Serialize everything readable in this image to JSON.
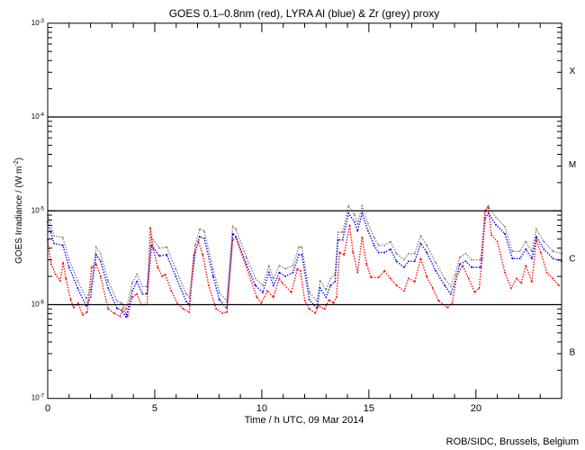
{
  "chart_data": {
    "type": "scatter",
    "title": "GOES 0.1–0.8nm (red), LYRA Al (blue) & Zr (grey) proxy",
    "xlabel": "Time / h UTC, 09 Mar 2014",
    "ylabel": "GOES Irradiance / (W m",
    "ylabel_sup": "-2",
    "ylabel_close": ")",
    "xlim": [
      0,
      24
    ],
    "ylim": [
      1e-07,
      0.001
    ],
    "yscale": "log",
    "x_ticks": [
      "0",
      "5",
      "10",
      "15",
      "20"
    ],
    "x_tick_values": [
      0,
      5,
      10,
      15,
      20
    ],
    "y_ticks": [
      {
        "base": "10",
        "exp": "-7",
        "value": 1e-07
      },
      {
        "base": "10",
        "exp": "-6",
        "value": 1e-06
      },
      {
        "base": "10",
        "exp": "-5",
        "value": 1e-05
      },
      {
        "base": "10",
        "exp": "-4",
        "value": 0.0001
      },
      {
        "base": "10",
        "exp": "-3",
        "value": 0.001
      }
    ],
    "reference_lines": [
      0.0001,
      1e-05,
      1e-06
    ],
    "flare_classes": [
      {
        "label": "X",
        "value": 0.000316
      },
      {
        "label": "M",
        "value": 3.16e-05
      },
      {
        "label": "C",
        "value": 3.16e-06
      },
      {
        "label": "B",
        "value": 3.16e-07
      }
    ],
    "series": [
      {
        "name": "LYRA Zr proxy",
        "color": "#808080",
        "x": [
          0,
          0.3,
          0.7,
          1.0,
          1.4,
          1.8,
          2.0,
          2.26,
          2.47,
          2.82,
          3.24,
          3.45,
          3.66,
          3.95,
          4.16,
          4.43,
          4.64,
          4.85,
          5.21,
          5.56,
          5.98,
          6.47,
          6.61,
          6.89,
          7.1,
          7.31,
          7.73,
          8.01,
          8.37,
          8.64,
          8.79,
          9.28,
          9.7,
          10.05,
          10.33,
          10.54,
          10.82,
          11.1,
          11.45,
          11.73,
          11.87,
          12.22,
          12.58,
          12.72,
          13.0,
          13.21,
          13.42,
          13.56,
          13.77,
          14.05,
          14.33,
          14.47,
          14.68,
          14.96,
          15.24,
          15.45,
          15.73,
          16.01,
          16.29,
          16.64,
          16.85,
          17.14,
          17.42,
          17.7,
          18.12,
          18.54,
          18.82,
          19.03,
          19.24,
          19.52,
          19.8,
          20.22,
          20.43,
          20.58,
          20.93,
          21.35,
          21.7,
          22.05,
          22.33,
          22.61,
          22.82,
          23.17,
          23.6,
          24
        ],
        "y": [
          9.1e-06,
          5.4e-06,
          5.2e-06,
          3e-06,
          1.8e-06,
          1.16e-06,
          1.44e-06,
          4.1e-06,
          3.5e-06,
          1.8e-06,
          1.09e-06,
          1.04e-06,
          8.9e-07,
          1.7e-06,
          2.1e-06,
          1.56e-06,
          1.56e-06,
          5.2e-06,
          4e-06,
          4.1e-06,
          2.4e-06,
          1.3e-06,
          1.2e-06,
          4.3e-06,
          6.4e-06,
          6.1e-06,
          2.4e-06,
          1.36e-06,
          1.09e-06,
          6.8e-06,
          6.4e-06,
          3.2e-06,
          1.9e-06,
          1.6e-06,
          2.6e-06,
          1.9e-06,
          2.6e-06,
          2.4e-06,
          2.6e-06,
          4.1e-06,
          4.1e-06,
          1.36e-06,
          1.09e-06,
          1.8e-06,
          1.44e-06,
          1.9e-06,
          2.1e-06,
          5.9e-06,
          5.9e-06,
          1.13e-05,
          9.1e-06,
          7.3e-06,
          1.13e-05,
          7.3e-06,
          5.2e-06,
          4.3e-06,
          4.3e-06,
          4.7e-06,
          3.5e-06,
          3e-06,
          3.5e-06,
          3.5e-06,
          5.4e-06,
          4.3e-06,
          2.8e-06,
          1.9e-06,
          1.56e-06,
          2.1e-06,
          3.2e-06,
          3.5e-06,
          3e-06,
          3e-06,
          1e-05,
          1.13e-05,
          8.5e-06,
          6.8e-06,
          3.7e-06,
          3.7e-06,
          4.7e-06,
          3.7e-06,
          6.4e-06,
          4.7e-06,
          3.7e-06,
          3.5e-06
        ]
      },
      {
        "name": "LYRA Al proxy",
        "color": "#0000ff",
        "x": [
          0,
          0.3,
          0.7,
          1.0,
          1.4,
          1.8,
          2.0,
          2.26,
          2.47,
          2.82,
          3.24,
          3.45,
          3.66,
          3.95,
          4.16,
          4.43,
          4.64,
          4.85,
          5.21,
          5.56,
          5.98,
          6.47,
          6.61,
          6.89,
          7.1,
          7.31,
          7.73,
          8.01,
          8.37,
          8.64,
          8.79,
          9.28,
          9.7,
          10.05,
          10.33,
          10.54,
          10.82,
          11.1,
          11.45,
          11.73,
          11.87,
          12.22,
          12.58,
          12.72,
          13.0,
          13.21,
          13.42,
          13.56,
          13.77,
          14.05,
          14.33,
          14.47,
          14.68,
          14.96,
          15.24,
          15.45,
          15.73,
          16.01,
          16.29,
          16.64,
          16.85,
          17.14,
          17.42,
          17.7,
          18.12,
          18.54,
          18.82,
          19.03,
          19.24,
          19.52,
          19.8,
          20.22,
          20.43,
          20.58,
          20.93,
          21.35,
          21.7,
          22.05,
          22.33,
          22.61,
          22.82,
          23.17,
          23.6,
          24
        ],
        "y": [
          7.6e-06,
          4.5e-06,
          4.3e-06,
          2.5e-06,
          1.5e-06,
          9.7e-07,
          1.2e-06,
          3.4e-06,
          2.9e-06,
          1.5e-06,
          9.1e-07,
          8.7e-07,
          7.4e-07,
          1.4e-06,
          1.76e-06,
          1.3e-06,
          1.3e-06,
          4.3e-06,
          3.3e-06,
          3.4e-06,
          2e-06,
          1.08e-06,
          1e-06,
          3.6e-06,
          5.3e-06,
          5.1e-06,
          2e-06,
          1.13e-06,
          9.1e-07,
          5.7e-06,
          5.3e-06,
          2.7e-06,
          1.6e-06,
          1.35e-06,
          2.2e-06,
          1.6e-06,
          2.2e-06,
          2e-06,
          2.2e-06,
          3.4e-06,
          3.4e-06,
          1.13e-06,
          9.1e-07,
          1.5e-06,
          1.2e-06,
          1.6e-06,
          1.76e-06,
          4.9e-06,
          4.9e-06,
          9.4e-06,
          7.6e-06,
          6.1e-06,
          9.4e-06,
          6.1e-06,
          4.3e-06,
          3.6e-06,
          3.6e-06,
          3.9e-06,
          2.9e-06,
          2.5e-06,
          2.9e-06,
          2.9e-06,
          4.5e-06,
          3.6e-06,
          2.3e-06,
          1.6e-06,
          1.3e-06,
          1.76e-06,
          2.7e-06,
          2.9e-06,
          2.5e-06,
          2.5e-06,
          8.3e-06,
          9.4e-06,
          7.1e-06,
          5.7e-06,
          3.1e-06,
          3.1e-06,
          3.9e-06,
          3.1e-06,
          5.3e-06,
          3.9e-06,
          3.1e-06,
          2.9e-06
        ]
      },
      {
        "name": "GOES 0.1-0.8nm",
        "color": "#ff0000",
        "x": [
          0,
          0.16,
          0.37,
          0.58,
          0.72,
          0.85,
          1.07,
          1.21,
          1.42,
          1.63,
          1.84,
          2.05,
          2.26,
          2.47,
          2.82,
          3.1,
          3.38,
          3.52,
          3.73,
          3.95,
          4.16,
          4.37,
          4.64,
          4.79,
          4.93,
          5.14,
          5.35,
          5.49,
          5.77,
          6.05,
          6.33,
          6.61,
          6.82,
          7.03,
          7.24,
          7.52,
          7.87,
          8.16,
          8.37,
          8.64,
          8.79,
          9.77,
          9.98,
          10.26,
          10.54,
          10.82,
          10.96,
          11.38,
          11.66,
          11.8,
          12.01,
          12.22,
          12.5,
          12.64,
          12.93,
          13.14,
          13.35,
          13.49,
          13.63,
          13.84,
          14.1,
          14.26,
          14.47,
          14.68,
          14.89,
          15.1,
          15.45,
          15.73,
          16.01,
          16.29,
          16.64,
          16.85,
          17.14,
          17.42,
          17.7,
          17.98,
          18.26,
          18.68,
          18.89,
          19.1,
          19.38,
          19.66,
          19.94,
          20.15,
          20.29,
          20.43,
          20.58,
          20.72,
          21.0,
          21.35,
          21.64,
          21.9,
          22.12,
          22.33,
          22.61,
          22.82,
          23.03,
          23.31,
          23.59,
          23.87
        ],
        "y": [
          4.9e-06,
          2.7e-06,
          2.1e-06,
          1.8e-06,
          2.8e-06,
          1.9e-06,
          1.13e-06,
          9.3e-07,
          1.04e-06,
          7.8e-07,
          8.3e-07,
          2.5e-06,
          2.7e-06,
          2e-06,
          9e-07,
          8.1e-07,
          7.5e-07,
          9.1e-07,
          7.5e-07,
          1.2e-06,
          1.3e-06,
          1e-06,
          1e-06,
          6.6e-06,
          3.9e-06,
          2.5e-06,
          2e-06,
          2.1e-06,
          1.4e-06,
          1.04e-06,
          9e-07,
          8.3e-07,
          3.4e-06,
          4.7e-06,
          3.4e-06,
          1.6e-06,
          9e-07,
          8.1e-07,
          8.3e-07,
          4.9e-06,
          5.2e-06,
          1.2e-06,
          1.04e-06,
          1.4e-06,
          1.2e-06,
          1.9e-06,
          1.7e-06,
          1.35e-06,
          2.4e-06,
          2.3e-06,
          1.1e-06,
          9e-07,
          8.1e-07,
          9.7e-07,
          9e-07,
          1.12e-06,
          1.04e-06,
          1.2e-06,
          3.6e-06,
          3.4e-06,
          7e-06,
          3.6e-06,
          2.2e-06,
          5.2e-06,
          2.7e-06,
          1.95e-06,
          1.95e-06,
          2.3e-06,
          1.9e-06,
          1.6e-06,
          1.4e-06,
          1.9e-06,
          1.75e-06,
          3.1e-06,
          2e-06,
          1.5e-06,
          1.1e-06,
          9.3e-07,
          1.04e-06,
          2e-06,
          2.6e-06,
          1.9e-06,
          1.35e-06,
          1.5e-06,
          3.1e-06,
          1e-05,
          1.1e-05,
          5.5e-06,
          4.7e-06,
          2.2e-06,
          1.5e-06,
          1.9e-06,
          1.7e-06,
          2.6e-06,
          1.75e-06,
          4.9e-06,
          3.6e-06,
          2.2e-06,
          1.9e-06,
          1.6e-06
        ]
      }
    ]
  },
  "credit": "ROB/SIDC, Brussels, Belgium"
}
